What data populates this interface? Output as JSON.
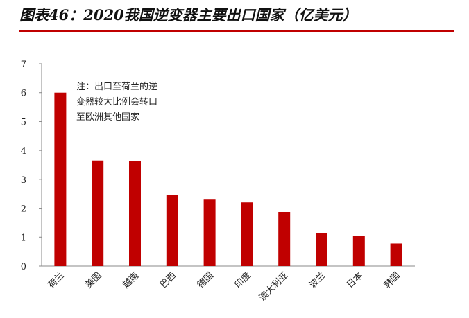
{
  "header": {
    "title": "图表46：2020我国逆变器主要出口国家（亿美元）"
  },
  "chart_data": {
    "type": "bar",
    "title": "图表46：2020我国逆变器主要出口国家（亿美元）",
    "xlabel": "",
    "ylabel": "",
    "categories": [
      "荷兰",
      "美国",
      "越南",
      "巴西",
      "德国",
      "印度",
      "澳大利亚",
      "波兰",
      "日本",
      "韩国"
    ],
    "values": [
      6.0,
      3.65,
      3.62,
      2.45,
      2.32,
      2.2,
      1.87,
      1.15,
      1.05,
      0.78
    ],
    "ylim": [
      0,
      7
    ],
    "yticks": [
      0,
      1,
      2,
      3,
      4,
      5,
      6,
      7
    ],
    "grid": false,
    "legend": "none",
    "bar_color": "#c00000",
    "annotation": [
      "注：出口至荷兰的逆",
      "变器较大比例会转口",
      "至欧洲其他国家"
    ]
  }
}
